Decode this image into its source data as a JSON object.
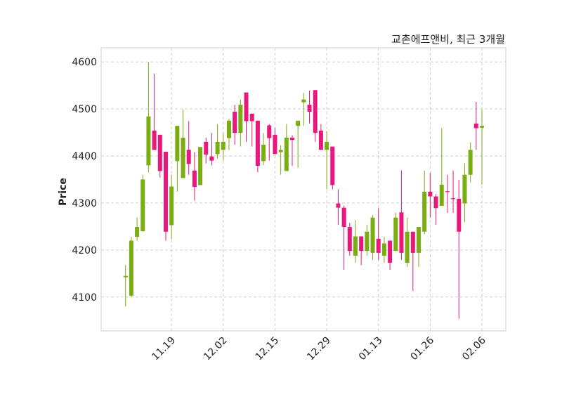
{
  "chart_data": {
    "type": "candlestick",
    "title": "교촌에프앤비, 최근 3개월",
    "xlabel": "",
    "ylabel": "Price",
    "ylim": [
      4028,
      4630
    ],
    "yticks": [
      4100,
      4200,
      4300,
      4400,
      4500,
      4600
    ],
    "xticks": [
      {
        "index": 8,
        "label": "11.19"
      },
      {
        "index": 17,
        "label": "12.02"
      },
      {
        "index": 26,
        "label": "12.15"
      },
      {
        "index": 35,
        "label": "12.29"
      },
      {
        "index": 44,
        "label": "01.13"
      },
      {
        "index": 53,
        "label": "01.26"
      },
      {
        "index": 62,
        "label": "02.06"
      }
    ],
    "grid": true,
    "colors": {
      "up": "#7aad12",
      "down": "#e8187c"
    },
    "candles": [
      [
        4142,
        4168,
        4080,
        4145
      ],
      [
        4103,
        4228,
        4100,
        4220
      ],
      [
        4228,
        4269,
        4220,
        4249
      ],
      [
        4240,
        4360,
        4239,
        4350
      ],
      [
        4380,
        4600,
        4365,
        4484
      ],
      [
        4454,
        4575,
        4413,
        4413
      ],
      [
        4445,
        4445,
        4354,
        4368
      ],
      [
        4409,
        4409,
        4220,
        4239
      ],
      [
        4253,
        4360,
        4223,
        4335
      ],
      [
        4389,
        4464,
        4324,
        4464
      ],
      [
        4353,
        4499,
        4353,
        4439
      ],
      [
        4413,
        4474,
        4360,
        4383
      ],
      [
        4369,
        4408,
        4305,
        4334
      ],
      [
        4338,
        4419,
        4338,
        4419
      ],
      [
        4430,
        4439,
        4384,
        4403
      ],
      [
        4399,
        4449,
        4380,
        4390
      ],
      [
        4404,
        4468,
        4394,
        4430
      ],
      [
        4413,
        4449,
        4390,
        4430
      ],
      [
        4438,
        4479,
        4413,
        4475
      ],
      [
        4494,
        4509,
        4424,
        4449
      ],
      [
        4449,
        4520,
        4420,
        4509
      ],
      [
        4535,
        4535,
        4430,
        4474
      ],
      [
        4490,
        4490,
        4420,
        4474
      ],
      [
        4475,
        4475,
        4365,
        4379
      ],
      [
        4389,
        4449,
        4380,
        4424
      ],
      [
        4465,
        4468,
        4390,
        4438
      ],
      [
        4445,
        4460,
        4404,
        4404
      ],
      [
        4408,
        4423,
        4360,
        4413
      ],
      [
        4368,
        4468,
        4368,
        4439
      ],
      [
        4439,
        4444,
        4379,
        4434
      ],
      [
        4464,
        4475,
        4375,
        4475
      ],
      [
        4514,
        4534,
        4464,
        4520
      ],
      [
        4509,
        4539,
        4469,
        4494
      ],
      [
        4540,
        4540,
        4430,
        4449
      ],
      [
        4454,
        4468,
        4413,
        4413
      ],
      [
        4413,
        4453,
        4329,
        4430
      ],
      [
        4420,
        4420,
        4329,
        4338
      ],
      [
        4299,
        4329,
        4254,
        4290
      ],
      [
        4290,
        4294,
        4158,
        4249
      ],
      [
        4249,
        4258,
        4188,
        4198
      ],
      [
        4188,
        4264,
        4173,
        4229
      ],
      [
        4229,
        4229,
        4168,
        4198
      ],
      [
        4198,
        4254,
        4188,
        4239
      ],
      [
        4194,
        4274,
        4179,
        4269
      ],
      [
        4224,
        4289,
        4179,
        4194
      ],
      [
        4188,
        4228,
        4173,
        4214
      ],
      [
        4220,
        4220,
        4158,
        4173
      ],
      [
        4198,
        4279,
        4198,
        4269
      ],
      [
        4280,
        4369,
        4179,
        4194
      ],
      [
        4173,
        4269,
        4164,
        4239
      ],
      [
        4239,
        4239,
        4113,
        4194
      ],
      [
        4194,
        4249,
        4164,
        4249
      ],
      [
        4239,
        4369,
        4234,
        4324
      ],
      [
        4324,
        4364,
        4269,
        4314
      ],
      [
        4314,
        4319,
        4254,
        4289
      ],
      [
        4294,
        4459,
        4294,
        4339
      ],
      [
        4325,
        4360,
        4279,
        4324
      ],
      [
        4310,
        4369,
        4279,
        4309
      ],
      [
        4309,
        4349,
        4054,
        4239
      ],
      [
        4299,
        4384,
        4259,
        4360
      ],
      [
        4360,
        4429,
        4344,
        4413
      ],
      [
        4469,
        4515,
        4413,
        4459
      ],
      [
        4460,
        4499,
        4339,
        4464
      ]
    ]
  }
}
